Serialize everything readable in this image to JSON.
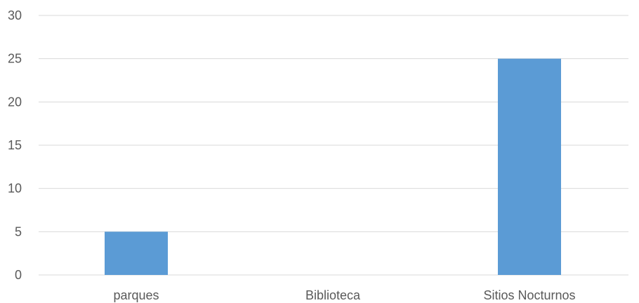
{
  "chart_data": {
    "type": "bar",
    "title": "",
    "xlabel": "",
    "ylabel": "",
    "categories": [
      "parques",
      "Biblioteca",
      "Sitios Nocturnos"
    ],
    "values": [
      5,
      0,
      25
    ],
    "ylim": [
      0,
      30
    ],
    "yticks": [
      0,
      5,
      10,
      15,
      20,
      25,
      30
    ],
    "grid": true,
    "legend": "none",
    "colors": {
      "bar": "#5b9bd5",
      "gridline": "#d9d9d9",
      "text": "#595959"
    }
  }
}
